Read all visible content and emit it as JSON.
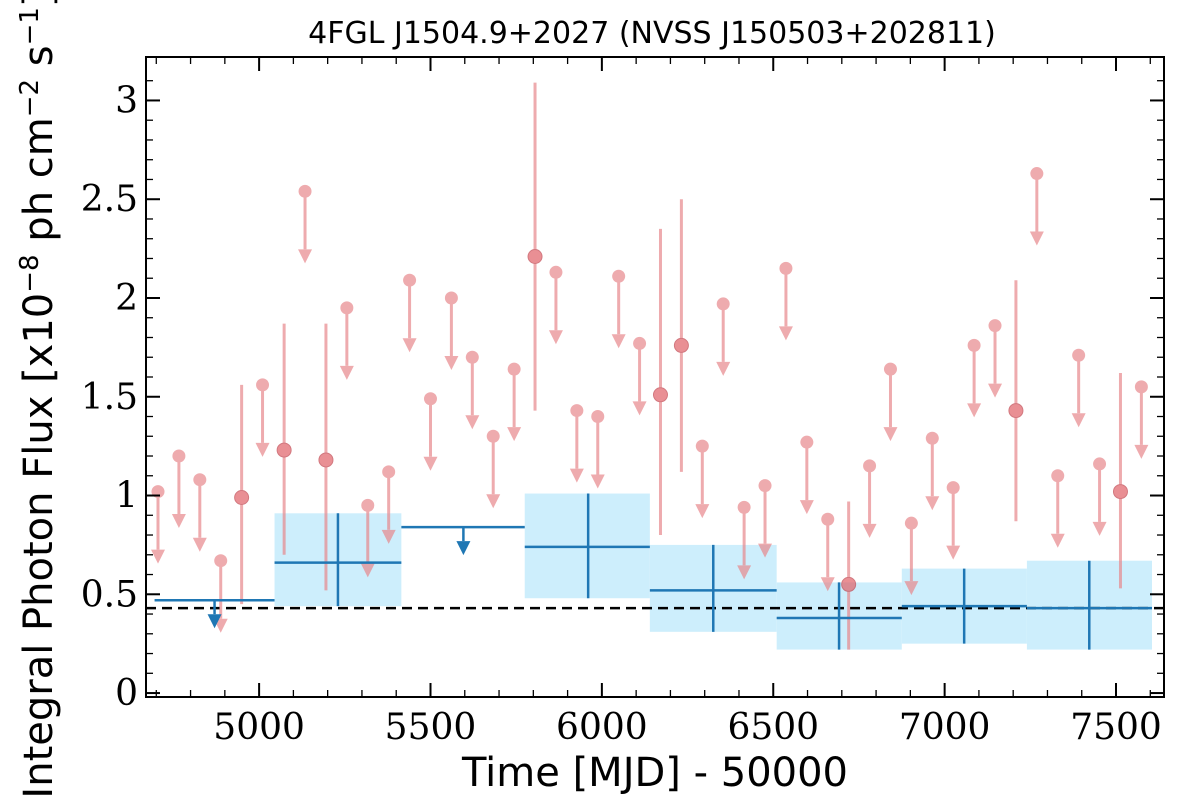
{
  "chart_data": {
    "type": "scatter",
    "title": "4FGL J1504.9+2027 (NVSS J150503+202811)",
    "xlabel": "Time [MJD] - 50000",
    "ylabel": "Integral Photon Flux [x10",
    "ylabel_exp1": "−8",
    "ylabel_mid": " ph cm",
    "ylabel_exp2": "−2",
    "ylabel_mid2": " s",
    "ylabel_exp3": "−1",
    "ylabel_end": "]",
    "xlim": [
      4670,
      7640
    ],
    "ylim": [
      -0.02,
      3.22
    ],
    "xticks": [
      5000,
      5500,
      6000,
      6500,
      7000,
      7500
    ],
    "xtick_labels": [
      "5000",
      "5500",
      "6000",
      "6500",
      "7000",
      "7500"
    ],
    "yticks": [
      0,
      0.5,
      1,
      1.5,
      2,
      2.5,
      3
    ],
    "ytick_labels": [
      "0",
      "0.5",
      "1",
      "1.5",
      "2",
      "2.5",
      "3"
    ],
    "reference_flux": 0.43,
    "colors": {
      "fine_bins": "#e8888d",
      "coarse_bins": "#1f77b4",
      "coarse_band": "#cdeefc",
      "reference": "#000000"
    },
    "fine_upper_limits": [
      {
        "x": 4705,
        "y": 1.02
      },
      {
        "x": 4766,
        "y": 1.2
      },
      {
        "x": 4827,
        "y": 1.08
      },
      {
        "x": 4888,
        "y": 0.67
      },
      {
        "x": 5010,
        "y": 1.56
      },
      {
        "x": 5256,
        "y": 1.95
      },
      {
        "x": 5317,
        "y": 0.95
      },
      {
        "x": 5378,
        "y": 1.12
      },
      {
        "x": 5439,
        "y": 2.09
      },
      {
        "x": 5500,
        "y": 1.49
      },
      {
        "x": 5561,
        "y": 2.0
      },
      {
        "x": 5622,
        "y": 1.7
      },
      {
        "x": 5683,
        "y": 1.3
      },
      {
        "x": 5744,
        "y": 1.64
      },
      {
        "x": 5866,
        "y": 2.13
      },
      {
        "x": 5927,
        "y": 1.43
      },
      {
        "x": 5988,
        "y": 1.4
      },
      {
        "x": 6049,
        "y": 2.11
      },
      {
        "x": 6110,
        "y": 1.77
      },
      {
        "x": 6293,
        "y": 1.25
      },
      {
        "x": 6354,
        "y": 1.97
      },
      {
        "x": 6415,
        "y": 0.94
      },
      {
        "x": 6476,
        "y": 1.05
      },
      {
        "x": 6537,
        "y": 2.15
      },
      {
        "x": 6598,
        "y": 1.27
      },
      {
        "x": 6659,
        "y": 0.88
      },
      {
        "x": 6781,
        "y": 1.15
      },
      {
        "x": 6842,
        "y": 1.64
      },
      {
        "x": 6903,
        "y": 0.86
      },
      {
        "x": 6964,
        "y": 1.29
      },
      {
        "x": 7025,
        "y": 1.04
      },
      {
        "x": 7086,
        "y": 1.76
      },
      {
        "x": 7147,
        "y": 1.86
      },
      {
        "x": 7330,
        "y": 1.1
      },
      {
        "x": 7391,
        "y": 1.71
      },
      {
        "x": 7452,
        "y": 1.16
      },
      {
        "x": 7574,
        "y": 1.55
      },
      {
        "x": 5134,
        "y": 2.54
      },
      {
        "x": 7269,
        "y": 2.63
      }
    ],
    "fine_detections": [
      {
        "x": 4949,
        "y": 0.99,
        "ylo": 0.45,
        "yhi": 1.56
      },
      {
        "x": 5073,
        "y": 1.23,
        "ylo": 0.7,
        "yhi": 1.87
      },
      {
        "x": 5195,
        "y": 1.18,
        "ylo": 0.52,
        "yhi": 1.87
      },
      {
        "x": 5805,
        "y": 2.21,
        "ylo": 1.43,
        "yhi": 3.09
      },
      {
        "x": 6171,
        "y": 1.51,
        "ylo": 0.8,
        "yhi": 2.35
      },
      {
        "x": 6232,
        "y": 1.76,
        "ylo": 1.12,
        "yhi": 2.5
      },
      {
        "x": 6720,
        "y": 0.55,
        "ylo": 0.22,
        "yhi": 0.97
      },
      {
        "x": 7208,
        "y": 1.43,
        "ylo": 0.87,
        "yhi": 2.09
      },
      {
        "x": 7513,
        "y": 1.02,
        "ylo": 0.53,
        "yhi": 1.62
      }
    ],
    "coarse_upper_limits": [
      {
        "x": 4870,
        "x0": 4695,
        "x1": 5045,
        "y": 0.47
      },
      {
        "x": 5596,
        "x0": 5415,
        "x1": 5775,
        "y": 0.84
      }
    ],
    "coarse_detections": [
      {
        "x": 5230,
        "x0": 5045,
        "x1": 5415,
        "y": 0.66,
        "ylo": 0.44,
        "yhi": 0.91
      },
      {
        "x": 5960,
        "x0": 5775,
        "x1": 6140,
        "y": 0.74,
        "ylo": 0.48,
        "yhi": 1.01
      },
      {
        "x": 6325,
        "x0": 6140,
        "x1": 6510,
        "y": 0.52,
        "ylo": 0.31,
        "yhi": 0.75
      },
      {
        "x": 6692,
        "x0": 6510,
        "x1": 6875,
        "y": 0.38,
        "ylo": 0.22,
        "yhi": 0.56
      },
      {
        "x": 7057,
        "x0": 6875,
        "x1": 7240,
        "y": 0.44,
        "ylo": 0.25,
        "yhi": 0.63
      },
      {
        "x": 7422,
        "x0": 7240,
        "x1": 7605,
        "y": 0.43,
        "ylo": 0.22,
        "yhi": 0.67
      }
    ]
  }
}
